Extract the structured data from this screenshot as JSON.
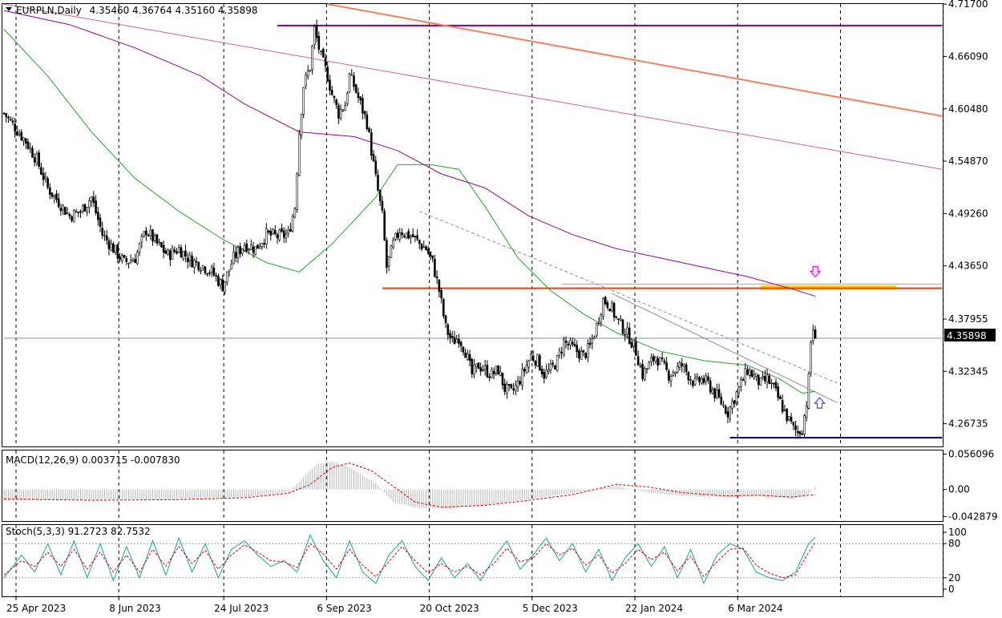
{
  "chart_data": {
    "type": "candlestick",
    "symbol_header": "EURPLN,Daily",
    "ohlc_header": "4.35460 4.36764 4.35160 4.35898",
    "price_axis": {
      "range": [
        4.243,
        4.7171
      ],
      "ticks": [
        "4.71700",
        "4.66090",
        "4.60480",
        "4.54870",
        "4.49260",
        "4.43650",
        "4.37955",
        "4.32345",
        "4.26735"
      ],
      "current_price_label": "4.35898"
    },
    "time_axis": {
      "labels": [
        "25 Apr 2023",
        "8 Jun 2023",
        "24 Jul 2023",
        "6 Sep 2023",
        "20 Oct 2023",
        "5 Dec 2023",
        "22 Jan 2024",
        "6 Mar 2024"
      ]
    },
    "close_path": [
      [
        0,
        4.6
      ],
      [
        5,
        4.585
      ],
      [
        10,
        4.57
      ],
      [
        15,
        4.55
      ],
      [
        20,
        4.52
      ],
      [
        25,
        4.505
      ],
      [
        30,
        4.49
      ],
      [
        35,
        4.495
      ],
      [
        40,
        4.51
      ],
      [
        45,
        4.47
      ],
      [
        50,
        4.455
      ],
      [
        55,
        4.44
      ],
      [
        60,
        4.445
      ],
      [
        65,
        4.475
      ],
      [
        70,
        4.46
      ],
      [
        75,
        4.448
      ],
      [
        80,
        4.455
      ],
      [
        85,
        4.443
      ],
      [
        90,
        4.438
      ],
      [
        95,
        4.43
      ],
      [
        100,
        4.415
      ],
      [
        105,
        4.445
      ],
      [
        110,
        4.46
      ],
      [
        115,
        4.455
      ],
      [
        120,
        4.47
      ],
      [
        125,
        4.468
      ],
      [
        130,
        4.47
      ],
      [
        133,
        4.5
      ],
      [
        135,
        4.58
      ],
      [
        137,
        4.63
      ],
      [
        140,
        4.65
      ],
      [
        142,
        4.69
      ],
      [
        145,
        4.66
      ],
      [
        148,
        4.64
      ],
      [
        150,
        4.62
      ],
      [
        153,
        4.6
      ],
      [
        156,
        4.61
      ],
      [
        158,
        4.64
      ],
      [
        160,
        4.63
      ],
      [
        163,
        4.61
      ],
      [
        166,
        4.59
      ],
      [
        168,
        4.56
      ],
      [
        170,
        4.53
      ],
      [
        173,
        4.49
      ],
      [
        175,
        4.435
      ],
      [
        178,
        4.46
      ],
      [
        181,
        4.475
      ],
      [
        184,
        4.47
      ],
      [
        187,
        4.468
      ],
      [
        190,
        4.46
      ],
      [
        193,
        4.455
      ],
      [
        196,
        4.44
      ],
      [
        199,
        4.41
      ],
      [
        202,
        4.37
      ],
      [
        205,
        4.355
      ],
      [
        208,
        4.36
      ],
      [
        211,
        4.345
      ],
      [
        214,
        4.32
      ],
      [
        217,
        4.33
      ],
      [
        220,
        4.325
      ],
      [
        223,
        4.32
      ],
      [
        226,
        4.325
      ],
      [
        229,
        4.305
      ],
      [
        232,
        4.3
      ],
      [
        235,
        4.31
      ],
      [
        238,
        4.325
      ],
      [
        241,
        4.34
      ],
      [
        244,
        4.335
      ],
      [
        247,
        4.32
      ],
      [
        250,
        4.325
      ],
      [
        253,
        4.335
      ],
      [
        256,
        4.355
      ],
      [
        259,
        4.35
      ],
      [
        262,
        4.345
      ],
      [
        265,
        4.34
      ],
      [
        268,
        4.35
      ],
      [
        271,
        4.372
      ],
      [
        274,
        4.4
      ],
      [
        277,
        4.395
      ],
      [
        280,
        4.38
      ],
      [
        283,
        4.37
      ],
      [
        286,
        4.36
      ],
      [
        289,
        4.345
      ],
      [
        292,
        4.32
      ],
      [
        295,
        4.33
      ],
      [
        298,
        4.34
      ],
      [
        301,
        4.33
      ],
      [
        304,
        4.32
      ],
      [
        307,
        4.325
      ],
      [
        310,
        4.33
      ],
      [
        313,
        4.32
      ],
      [
        316,
        4.31
      ],
      [
        319,
        4.315
      ],
      [
        322,
        4.31
      ],
      [
        325,
        4.3
      ],
      [
        328,
        4.29
      ],
      [
        331,
        4.28
      ],
      [
        334,
        4.295
      ],
      [
        337,
        4.31
      ],
      [
        340,
        4.325
      ],
      [
        343,
        4.318
      ],
      [
        346,
        4.31
      ],
      [
        349,
        4.315
      ],
      [
        352,
        4.305
      ],
      [
        355,
        4.29
      ],
      [
        358,
        4.275
      ],
      [
        361,
        4.262
      ],
      [
        363,
        4.258
      ],
      [
        365,
        4.262
      ],
      [
        367,
        4.29
      ],
      [
        368,
        4.315
      ],
      [
        369,
        4.355
      ],
      [
        370,
        4.37
      ],
      [
        371,
        4.359
      ]
    ],
    "bars_count": 372,
    "moving_averages": [
      {
        "color": "#24a324",
        "points": [
          [
            0,
            4.69
          ],
          [
            20,
            4.64
          ],
          [
            40,
            4.58
          ],
          [
            60,
            4.53
          ],
          [
            80,
            4.495
          ],
          [
            100,
            4.465
          ],
          [
            120,
            4.44
          ],
          [
            135,
            4.43
          ],
          [
            150,
            4.46
          ],
          [
            170,
            4.51
          ],
          [
            180,
            4.545
          ],
          [
            195,
            4.545
          ],
          [
            208,
            4.54
          ],
          [
            220,
            4.5
          ],
          [
            235,
            4.445
          ],
          [
            250,
            4.41
          ],
          [
            265,
            4.385
          ],
          [
            280,
            4.365
          ],
          [
            300,
            4.345
          ],
          [
            320,
            4.335
          ],
          [
            340,
            4.33
          ],
          [
            355,
            4.315
          ],
          [
            365,
            4.3
          ],
          [
            371,
            4.302
          ]
        ]
      },
      {
        "color": "#990099",
        "points": [
          [
            0,
            4.71
          ],
          [
            30,
            4.695
          ],
          [
            60,
            4.67
          ],
          [
            90,
            4.64
          ],
          [
            110,
            4.61
          ],
          [
            135,
            4.58
          ],
          [
            160,
            4.575
          ],
          [
            180,
            4.56
          ],
          [
            200,
            4.535
          ],
          [
            220,
            4.52
          ],
          [
            240,
            4.49
          ],
          [
            260,
            4.47
          ],
          [
            280,
            4.455
          ],
          [
            300,
            4.445
          ],
          [
            320,
            4.435
          ],
          [
            340,
            4.425
          ],
          [
            360,
            4.412
          ],
          [
            371,
            4.404
          ]
        ]
      }
    ],
    "horizontal_lines": [
      {
        "price": 4.694,
        "from": 125,
        "to": 429,
        "color": "#800080"
      },
      {
        "price": 4.4125,
        "from": 173,
        "to": 429,
        "color": "#e0440a"
      },
      {
        "price": 4.2525,
        "from": 332,
        "to": 429,
        "color": "#00008b"
      },
      {
        "price": 4.359,
        "from": 0,
        "to": 429,
        "color": "#8090a0"
      },
      {
        "price": 4.417,
        "from": 255,
        "to": 429,
        "color": "#b0a0a0"
      }
    ],
    "trend_lines": [
      {
        "p1": [
          148,
          4.717
        ],
        "p2": [
          429,
          4.597
        ],
        "color": "#f08060",
        "width": 2
      },
      {
        "p1": [
          0,
          4.717
        ],
        "p2": [
          429,
          4.54
        ],
        "color": "#d060a0",
        "width": 1
      },
      {
        "p1": [
          190,
          4.495
        ],
        "p2": [
          381,
          4.311
        ],
        "color": "#909090",
        "width": 1,
        "dash": true
      },
      {
        "p1": [
          278,
          4.407
        ],
        "p2": [
          381,
          4.29
        ],
        "color": "#909090",
        "width": 1
      }
    ],
    "highlight_zone": {
      "from": 346,
      "to": 408,
      "low": 4.411,
      "high": 4.4155,
      "color": "#ffd000"
    },
    "arrows": [
      {
        "bar": 371,
        "price": 4.429,
        "direction": "down",
        "color": "#ff00ff"
      },
      {
        "bar": 373,
        "price": 4.291,
        "direction": "up",
        "color": "#4040ff"
      }
    ],
    "macd": {
      "header": "MACD(12,26,9) 0.003715 -0.007830",
      "ticks": [
        "0.056096",
        "0.00",
        "-0.042879"
      ],
      "range": [
        -0.05,
        0.062
      ],
      "histogram_path": [
        [
          0,
          -0.018
        ],
        [
          40,
          -0.016
        ],
        [
          80,
          -0.015
        ],
        [
          110,
          -0.012
        ],
        [
          130,
          -0.005
        ],
        [
          137,
          0.02
        ],
        [
          143,
          0.04
        ],
        [
          150,
          0.045
        ],
        [
          158,
          0.035
        ],
        [
          170,
          0.01
        ],
        [
          178,
          -0.02
        ],
        [
          190,
          -0.03
        ],
        [
          205,
          -0.03
        ],
        [
          220,
          -0.025
        ],
        [
          240,
          -0.015
        ],
        [
          260,
          -0.005
        ],
        [
          280,
          0.005
        ],
        [
          295,
          -0.005
        ],
        [
          310,
          -0.01
        ],
        [
          330,
          -0.012
        ],
        [
          345,
          -0.01
        ],
        [
          360,
          -0.015
        ],
        [
          367,
          -0.01
        ],
        [
          371,
          0.004
        ]
      ],
      "signal_path": [
        [
          0,
          -0.015
        ],
        [
          40,
          -0.017
        ],
        [
          80,
          -0.016
        ],
        [
          110,
          -0.013
        ],
        [
          130,
          -0.006
        ],
        [
          140,
          0.008
        ],
        [
          150,
          0.035
        ],
        [
          158,
          0.042
        ],
        [
          168,
          0.03
        ],
        [
          178,
          0.005
        ],
        [
          188,
          -0.02
        ],
        [
          200,
          -0.028
        ],
        [
          220,
          -0.025
        ],
        [
          240,
          -0.017
        ],
        [
          260,
          -0.008
        ],
        [
          280,
          0.008
        ],
        [
          295,
          0.004
        ],
        [
          310,
          -0.005
        ],
        [
          330,
          -0.01
        ],
        [
          345,
          -0.009
        ],
        [
          360,
          -0.012
        ],
        [
          371,
          -0.008
        ]
      ]
    },
    "stochastic": {
      "header": "Stoch(5,3,3) 91.2723 82.7532",
      "ticks": [
        "100",
        "80",
        "20",
        "0"
      ],
      "range": [
        0,
        100
      ],
      "main_path": [
        [
          0,
          20
        ],
        [
          8,
          60
        ],
        [
          14,
          30
        ],
        [
          20,
          80
        ],
        [
          26,
          25
        ],
        [
          32,
          85
        ],
        [
          38,
          20
        ],
        [
          44,
          80
        ],
        [
          50,
          15
        ],
        [
          56,
          75
        ],
        [
          62,
          20
        ],
        [
          68,
          85
        ],
        [
          74,
          25
        ],
        [
          80,
          90
        ],
        [
          86,
          30
        ],
        [
          92,
          80
        ],
        [
          98,
          20
        ],
        [
          104,
          70
        ],
        [
          110,
          85
        ],
        [
          116,
          60
        ],
        [
          122,
          40
        ],
        [
          128,
          50
        ],
        [
          134,
          30
        ],
        [
          140,
          95
        ],
        [
          146,
          50
        ],
        [
          152,
          20
        ],
        [
          158,
          85
        ],
        [
          164,
          30
        ],
        [
          170,
          10
        ],
        [
          176,
          60
        ],
        [
          182,
          85
        ],
        [
          188,
          40
        ],
        [
          194,
          15
        ],
        [
          200,
          55
        ],
        [
          206,
          20
        ],
        [
          212,
          45
        ],
        [
          218,
          15
        ],
        [
          224,
          55
        ],
        [
          230,
          85
        ],
        [
          236,
          35
        ],
        [
          242,
          60
        ],
        [
          248,
          90
        ],
        [
          254,
          50
        ],
        [
          260,
          80
        ],
        [
          266,
          30
        ],
        [
          272,
          70
        ],
        [
          278,
          15
        ],
        [
          284,
          55
        ],
        [
          290,
          80
        ],
        [
          296,
          40
        ],
        [
          302,
          75
        ],
        [
          308,
          20
        ],
        [
          314,
          70
        ],
        [
          320,
          10
        ],
        [
          326,
          60
        ],
        [
          332,
          80
        ],
        [
          338,
          70
        ],
        [
          344,
          30
        ],
        [
          350,
          20
        ],
        [
          356,
          15
        ],
        [
          362,
          30
        ],
        [
          368,
          80
        ],
        [
          371,
          91
        ]
      ],
      "signal_path": [
        [
          0,
          25
        ],
        [
          8,
          50
        ],
        [
          14,
          40
        ],
        [
          20,
          65
        ],
        [
          26,
          40
        ],
        [
          32,
          70
        ],
        [
          38,
          35
        ],
        [
          44,
          65
        ],
        [
          50,
          30
        ],
        [
          56,
          60
        ],
        [
          62,
          30
        ],
        [
          68,
          70
        ],
        [
          74,
          40
        ],
        [
          80,
          75
        ],
        [
          86,
          45
        ],
        [
          92,
          68
        ],
        [
          98,
          35
        ],
        [
          104,
          60
        ],
        [
          110,
          78
        ],
        [
          116,
          65
        ],
        [
          122,
          50
        ],
        [
          128,
          48
        ],
        [
          134,
          38
        ],
        [
          140,
          80
        ],
        [
          146,
          62
        ],
        [
          152,
          35
        ],
        [
          158,
          70
        ],
        [
          164,
          42
        ],
        [
          170,
          22
        ],
        [
          176,
          48
        ],
        [
          182,
          75
        ],
        [
          188,
          50
        ],
        [
          194,
          28
        ],
        [
          200,
          45
        ],
        [
          206,
          30
        ],
        [
          212,
          40
        ],
        [
          218,
          25
        ],
        [
          224,
          45
        ],
        [
          230,
          72
        ],
        [
          236,
          48
        ],
        [
          242,
          55
        ],
        [
          248,
          80
        ],
        [
          254,
          60
        ],
        [
          260,
          72
        ],
        [
          266,
          42
        ],
        [
          272,
          60
        ],
        [
          278,
          28
        ],
        [
          284,
          45
        ],
        [
          290,
          70
        ],
        [
          296,
          52
        ],
        [
          302,
          65
        ],
        [
          308,
          32
        ],
        [
          314,
          58
        ],
        [
          320,
          22
        ],
        [
          326,
          48
        ],
        [
          332,
          70
        ],
        [
          338,
          72
        ],
        [
          344,
          42
        ],
        [
          350,
          28
        ],
        [
          356,
          20
        ],
        [
          362,
          25
        ],
        [
          368,
          65
        ],
        [
          371,
          83
        ]
      ]
    }
  }
}
